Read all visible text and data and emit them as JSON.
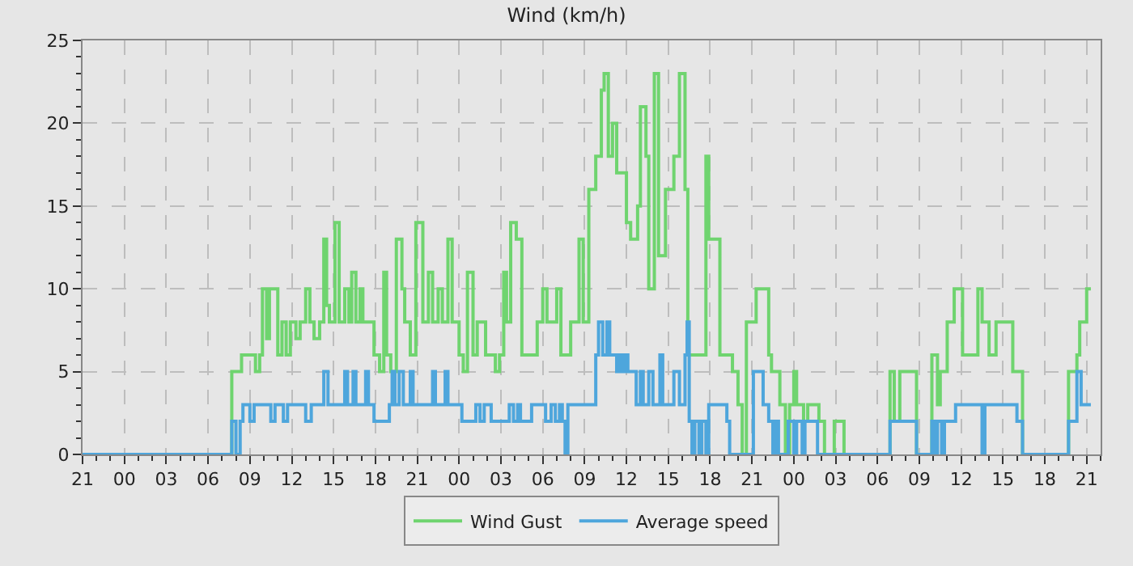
{
  "chart_data": {
    "type": "step",
    "title": "Wind (km/h)",
    "xlim": [
      "--01-01T21:00",
      "--01-04T22:00"
    ],
    "ylim": [
      0,
      25
    ],
    "xticks": [
      {
        "value": "--01-01T21:00",
        "label": "21"
      },
      {
        "value": "--01-02T00:00",
        "label": "00"
      },
      {
        "value": "--01-02T03:00",
        "label": "03"
      },
      {
        "value": "--01-02T06:00",
        "label": "06"
      },
      {
        "value": "--01-02T09:00",
        "label": "09"
      },
      {
        "value": "--01-02T12:00",
        "label": "12"
      },
      {
        "value": "--01-02T15:00",
        "label": "15"
      },
      {
        "value": "--01-02T18:00",
        "label": "18"
      },
      {
        "value": "--01-02T21:00",
        "label": "21"
      },
      {
        "value": "--01-03T00:00",
        "label": "00"
      },
      {
        "value": "--01-03T03:00",
        "label": "03"
      },
      {
        "value": "--01-03T06:00",
        "label": "06"
      },
      {
        "value": "--01-03T09:00",
        "label": "09"
      },
      {
        "value": "--01-03T12:00",
        "label": "12"
      },
      {
        "value": "--01-03T15:00",
        "label": "15"
      },
      {
        "value": "--01-03T18:00",
        "label": "18"
      },
      {
        "value": "--01-03T21:00",
        "label": "21"
      },
      {
        "value": "--01-04T00:00",
        "label": "00"
      },
      {
        "value": "--01-04T03:00",
        "label": "03"
      },
      {
        "value": "--01-04T06:00",
        "label": "06"
      },
      {
        "value": "--01-04T09:00",
        "label": "09"
      },
      {
        "value": "--01-04T12:00",
        "label": "12"
      },
      {
        "value": "--01-04T15:00",
        "label": "15"
      },
      {
        "value": "--01-04T18:00",
        "label": "18"
      },
      {
        "value": "--01-04T21:00",
        "label": "21"
      }
    ],
    "yticks": [
      0,
      5,
      10,
      15,
      20,
      25
    ],
    "grid": true,
    "legend": "bottom",
    "marker": "none",
    "series": [
      {
        "name": "Wind Gust",
        "color": "#6fd46f",
        "x": [
          "--01-01T21:00",
          "--01-02T07:42",
          "--01-02T08:24",
          "--01-02T09:24",
          "--01-02T09:42",
          "--01-02T09:54",
          "--01-02T10:12",
          "--01-02T10:24",
          "--01-02T11:00",
          "--01-02T11:18",
          "--01-02T11:36",
          "--01-02T11:54",
          "--01-02T12:18",
          "--01-02T12:36",
          "--01-02T13:00",
          "--01-02T13:18",
          "--01-02T13:36",
          "--01-02T14:00",
          "--01-02T14:18",
          "--01-02T14:30",
          "--01-02T14:42",
          "--01-02T15:06",
          "--01-02T15:24",
          "--01-02T15:48",
          "--01-02T16:06",
          "--01-02T16:18",
          "--01-02T16:36",
          "--01-02T16:54",
          "--01-02T17:06",
          "--01-02T17:54",
          "--01-02T18:18",
          "--01-02T18:36",
          "--01-02T18:48",
          "--01-02T19:06",
          "--01-02T19:30",
          "--01-02T19:54",
          "--01-02T20:06",
          "--01-02T20:30",
          "--01-02T20:54",
          "--01-02T21:24",
          "--01-02T21:48",
          "--01-02T22:06",
          "--01-02T22:30",
          "--01-02T22:48",
          "--01-02T23:12",
          "--01-02T23:30",
          "--01-03T00:00",
          "--01-03T00:18",
          "--01-03T00:36",
          "--01-03T01:00",
          "--01-03T01:18",
          "--01-03T01:54",
          "--01-03T02:36",
          "--01-03T02:54",
          "--01-03T03:12",
          "--01-03T03:24",
          "--01-03T03:42",
          "--01-03T04:06",
          "--01-03T04:30",
          "--01-03T05:36",
          "--01-03T06:00",
          "--01-03T06:18",
          "--01-03T07:00",
          "--01-03T07:18",
          "--01-03T08:00",
          "--01-03T08:36",
          "--01-03T08:54",
          "--01-03T09:18",
          "--01-03T09:48",
          "--01-03T10:12",
          "--01-03T10:24",
          "--01-03T10:42",
          "--01-03T11:00",
          "--01-03T11:18",
          "--01-03T12:00",
          "--01-03T12:18",
          "--01-03T12:48",
          "--01-03T13:00",
          "--01-03T13:24",
          "--01-03T13:36",
          "--01-03T14:00",
          "--01-03T14:18",
          "--01-03T14:48",
          "--01-03T15:24",
          "--01-03T15:48",
          "--01-03T16:12",
          "--01-03T16:24",
          "--01-03T17:42",
          "--01-03T17:54",
          "--01-03T18:42",
          "--01-03T19:36",
          "--01-03T20:00",
          "--01-03T20:18",
          "--01-03T20:36",
          "--01-03T21:18",
          "--01-03T22:12",
          "--01-03T22:24",
          "--01-03T23:00",
          "--01-03T23:24",
          "--01-03T23:42",
          "--01-04T00:00",
          "--01-04T00:12",
          "--01-04T00:42",
          "--01-04T01:00",
          "--01-04T01:48",
          "--01-04T02:12",
          "--01-04T02:54",
          "--01-04T03:36",
          "--01-04T06:54",
          "--01-04T07:12",
          "--01-04T07:36",
          "--01-04T08:48",
          "--01-04T09:54",
          "--01-04T10:18",
          "--01-04T10:30",
          "--01-04T11:00",
          "--01-04T11:30",
          "--01-04T12:06",
          "--01-04T13:12",
          "--01-04T13:30",
          "--01-04T14:00",
          "--01-04T14:30",
          "--01-04T15:42",
          "--01-04T16:24",
          "--01-04T19:42",
          "--01-04T20:18",
          "--01-04T20:30",
          "--01-04T21:00",
          "--01-04T21:18"
        ],
        "values": [
          0,
          5,
          6,
          5,
          6,
          10,
          7,
          10,
          6,
          8,
          6,
          8,
          7,
          8,
          10,
          8,
          7,
          8,
          13,
          9,
          8,
          14,
          8,
          10,
          8,
          11,
          8,
          10,
          8,
          6,
          5,
          11,
          6,
          5,
          13,
          10,
          8,
          6,
          14,
          8,
          11,
          8,
          10,
          8,
          13,
          8,
          6,
          5,
          11,
          6,
          8,
          6,
          5,
          6,
          11,
          8,
          14,
          13,
          6,
          8,
          10,
          8,
          10,
          6,
          8,
          13,
          8,
          16,
          18,
          22,
          23,
          18,
          20,
          17,
          14,
          13,
          15,
          21,
          18,
          10,
          23,
          12,
          16,
          18,
          23,
          16,
          6,
          18,
          13,
          6,
          5,
          3,
          0,
          8,
          10,
          6,
          5,
          3,
          0,
          3,
          5,
          3,
          2,
          3,
          2,
          0,
          2,
          0,
          5,
          2,
          5,
          0,
          6,
          3,
          5,
          8,
          10,
          6,
          10,
          8,
          6,
          8,
          5,
          0,
          5,
          6,
          8,
          10,
          10
        ]
      },
      {
        "name": "Average speed",
        "color": "#4ea6dc",
        "x": [
          "--01-01T21:00",
          "--01-02T07:42",
          "--01-02T08:00",
          "--01-02T08:18",
          "--01-02T08:30",
          "--01-02T09:00",
          "--01-02T09:18",
          "--01-02T10:30",
          "--01-02T10:48",
          "--01-02T11:24",
          "--01-02T11:42",
          "--01-02T13:00",
          "--01-02T13:24",
          "--01-02T14:18",
          "--01-02T14:36",
          "--01-02T15:48",
          "--01-02T16:00",
          "--01-02T16:24",
          "--01-02T16:36",
          "--01-02T17:18",
          "--01-02T17:30",
          "--01-02T17:54",
          "--01-02T19:00",
          "--01-02T19:12",
          "--01-02T19:24",
          "--01-02T19:42",
          "--01-02T20:00",
          "--01-02T20:30",
          "--01-02T20:42",
          "--01-02T22:06",
          "--01-02T22:18",
          "--01-02T23:00",
          "--01-02T23:12",
          "--01-03T00:12",
          "--01-03T01:12",
          "--01-03T01:30",
          "--01-03T01:48",
          "--01-03T02:18",
          "--01-03T03:36",
          "--01-03T03:54",
          "--01-03T04:12",
          "--01-03T04:24",
          "--01-03T05:12",
          "--01-03T06:12",
          "--01-03T06:36",
          "--01-03T06:54",
          "--01-03T07:12",
          "--01-03T07:24",
          "--01-03T07:36",
          "--01-03T07:48",
          "--01-03T09:48",
          "--01-03T10:00",
          "--01-03T10:18",
          "--01-03T10:36",
          "--01-03T10:48",
          "--01-03T11:18",
          "--01-03T11:30",
          "--01-03T11:42",
          "--01-03T11:54",
          "--01-03T12:06",
          "--01-03T12:42",
          "--01-03T13:00",
          "--01-03T13:12",
          "--01-03T13:36",
          "--01-03T13:54",
          "--01-03T14:24",
          "--01-03T14:36",
          "--01-03T15:24",
          "--01-03T15:48",
          "--01-03T16:12",
          "--01-03T16:21",
          "--01-03T16:30",
          "--01-03T16:42",
          "--01-03T16:54",
          "--01-03T17:12",
          "--01-03T17:24",
          "--01-03T17:42",
          "--01-03T17:54",
          "--01-03T19:12",
          "--01-03T19:24",
          "--01-03T21:06",
          "--01-03T21:48",
          "--01-03T22:12",
          "--01-03T22:30",
          "--01-03T22:42",
          "--01-03T22:54",
          "--01-03T23:36",
          "--01-04T00:00",
          "--01-04T00:12",
          "--01-04T00:36",
          "--01-04T00:48",
          "--01-04T01:42",
          "--01-04T06:54",
          "--01-04T08:48",
          "--01-04T09:54",
          "--01-04T10:06",
          "--01-04T10:18",
          "--01-04T10:36",
          "--01-04T10:48",
          "--01-04T11:36",
          "--01-04T13:30",
          "--01-04T13:42",
          "--01-04T16:00",
          "--01-04T16:24",
          "--01-04T19:42",
          "--01-04T20:18",
          "--01-04T20:36",
          "--01-04T21:18"
        ],
        "values": [
          0,
          2,
          0,
          2,
          3,
          2,
          3,
          2,
          3,
          2,
          3,
          2,
          3,
          5,
          3,
          5,
          3,
          5,
          3,
          5,
          3,
          2,
          3,
          5,
          3,
          5,
          3,
          5,
          3,
          5,
          3,
          5,
          3,
          2,
          3,
          2,
          3,
          2,
          3,
          2,
          3,
          2,
          3,
          2,
          3,
          2,
          3,
          2,
          0,
          3,
          6,
          8,
          6,
          8,
          6,
          5,
          6,
          5,
          6,
          5,
          3,
          5,
          3,
          5,
          3,
          6,
          3,
          5,
          3,
          6,
          8,
          2,
          0,
          2,
          0,
          2,
          0,
          3,
          2,
          0,
          5,
          3,
          2,
          0,
          2,
          0,
          2,
          0,
          2,
          0,
          2,
          0,
          2,
          0,
          2,
          0,
          2,
          0,
          2,
          3,
          0,
          3,
          2,
          0,
          2,
          5,
          3,
          3
        ]
      }
    ]
  }
}
